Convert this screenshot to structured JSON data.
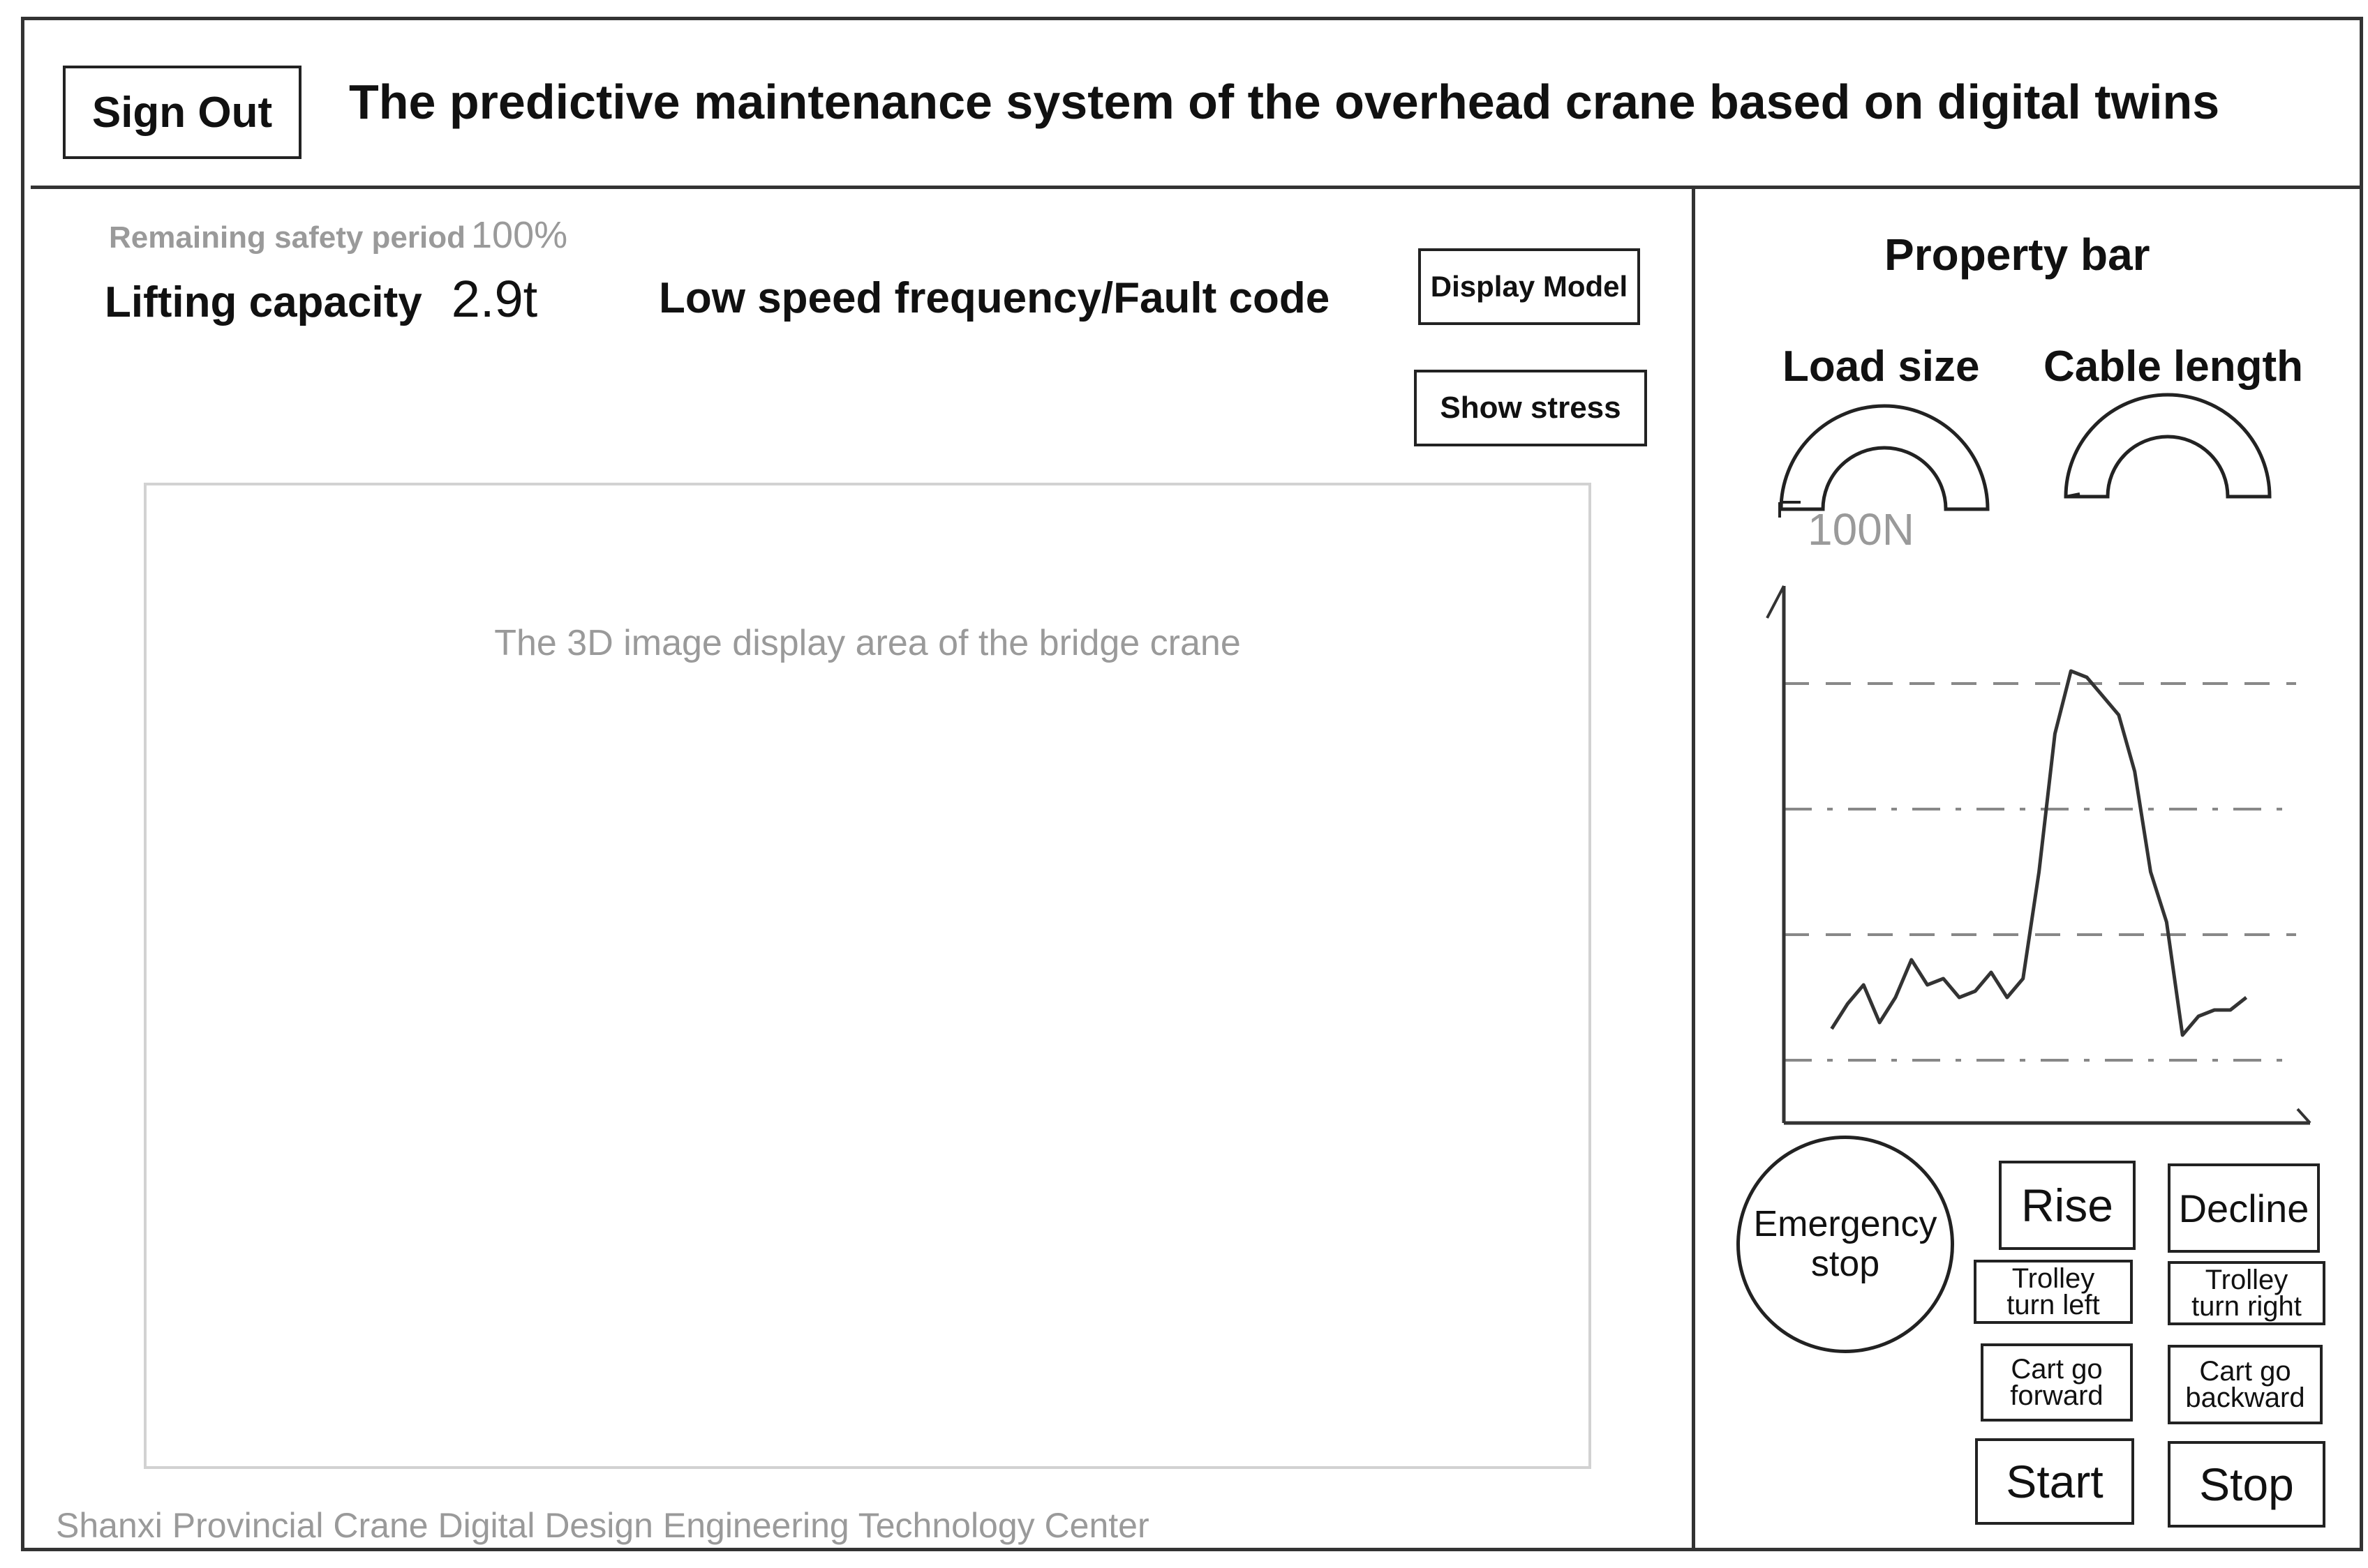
{
  "header": {
    "sign_out_label": "Sign Out",
    "title": "The predictive maintenance system of the overhead crane based on digital twins"
  },
  "status": {
    "remaining_safety_label": "Remaining safety period",
    "remaining_safety_value": "100%",
    "lifting_capacity_label": "Lifting capacity",
    "lifting_capacity_value": "2.9t",
    "fault_label": "Low speed frequency/Fault code"
  },
  "toolbar": {
    "display_model_label": "Display Model",
    "show_stress_label": "Show stress"
  },
  "display_area": {
    "label": "The 3D image display area of the bridge crane"
  },
  "footer": {
    "text": "Shanxi Provincial Crane Digital Design Engineering Technology Center"
  },
  "property_bar": {
    "title": "Property bar",
    "load_size_label": "Load size",
    "load_size_value": "100N",
    "cable_length_label": "Cable length"
  },
  "controls": {
    "emergency_stop": "Emergency\nstop",
    "rise": "Rise",
    "decline": "Decline",
    "trolley_left": "Trolley\nturn left",
    "trolley_right": "Trolley\nturn right",
    "cart_forward": "Cart go\nforward",
    "cart_backward": "Cart go\nbackward",
    "start": "Start",
    "stop": "Stop"
  },
  "chart_data": {
    "type": "line",
    "title": "",
    "xlabel": "",
    "ylabel": "",
    "x": [
      0,
      1,
      2,
      3,
      4,
      5,
      6,
      7,
      8,
      9,
      10,
      11,
      12,
      13,
      14,
      15,
      16,
      17,
      18,
      19,
      20,
      21,
      22,
      23,
      24,
      25,
      26
    ],
    "y": [
      0.5,
      0.9,
      1.2,
      0.6,
      1.0,
      1.6,
      1.2,
      1.3,
      1.0,
      1.1,
      1.4,
      1.0,
      1.3,
      3.0,
      5.2,
      6.2,
      6.1,
      5.8,
      5.5,
      4.6,
      3.0,
      2.2,
      0.4,
      0.7,
      0.8,
      0.8,
      1.0
    ],
    "xlim": [
      -3,
      30
    ],
    "ylim": [
      -1,
      7
    ],
    "reference_lines": [
      -1,
      0,
      2,
      4,
      6
    ],
    "grid": true,
    "line_color": "#333333",
    "reference_color": "#888888"
  }
}
